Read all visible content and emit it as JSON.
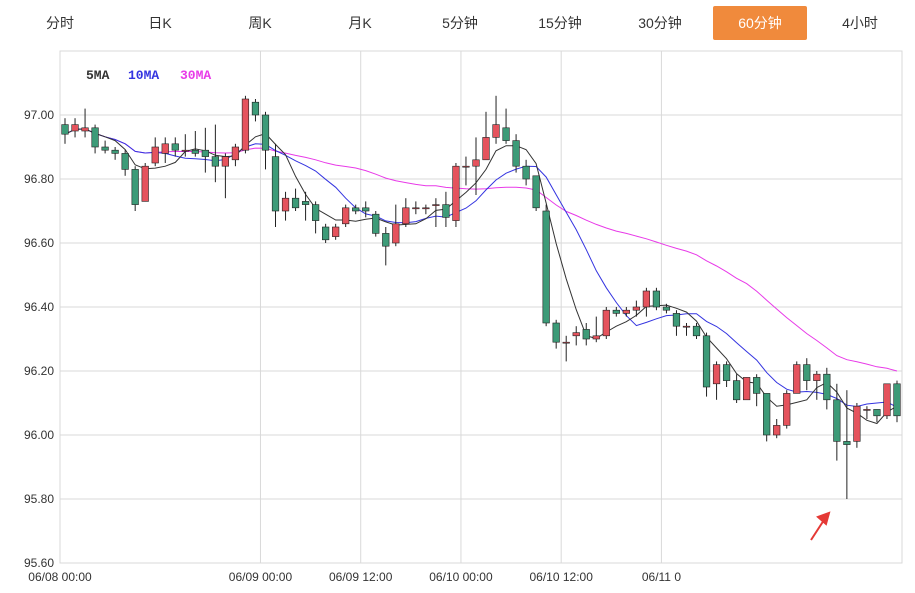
{
  "tabs": [
    {
      "label": "分时",
      "active": false
    },
    {
      "label": "日K",
      "active": false
    },
    {
      "label": "周K",
      "active": false
    },
    {
      "label": "月K",
      "active": false
    },
    {
      "label": "5分钟",
      "active": false
    },
    {
      "label": "15分钟",
      "active": false
    },
    {
      "label": "30分钟",
      "active": false
    },
    {
      "label": "60分钟",
      "active": true
    },
    {
      "label": "4小时",
      "active": false
    }
  ],
  "colors": {
    "up": "#e5535d",
    "down": "#3d9b78",
    "ma5": "#333333",
    "ma10": "#3434e0",
    "ma30": "#e83ae8",
    "active_tab": "#f08a3c",
    "grid": "#d9d9d9"
  },
  "legend": {
    "ma5": "5MA",
    "ma10": "10MA",
    "ma30": "30MA"
  },
  "chart_data": {
    "type": "candlestick",
    "interval": "60分钟",
    "ylim": [
      95.6,
      97.2
    ],
    "y_ticks": [
      "95.60",
      "95.80",
      "96.00",
      "96.20",
      "96.40",
      "96.60",
      "96.80",
      "97.00"
    ],
    "x_ticks": [
      "06/08 00:00",
      "06/09 00:00",
      "06/09 12:00",
      "06/10 00:00",
      "06/10 12:00",
      "06/11 0"
    ],
    "x_tick_index": [
      0,
      20,
      30,
      40,
      50,
      60
    ],
    "grid": true,
    "legend_position": "top-left",
    "candles": [
      [
        96.97,
        96.94,
        96.99,
        96.91
      ],
      [
        96.95,
        96.97,
        96.99,
        96.93
      ],
      [
        96.95,
        96.96,
        97.02,
        96.93
      ],
      [
        96.96,
        96.9,
        96.97,
        96.88
      ],
      [
        96.9,
        96.89,
        96.92,
        96.88
      ],
      [
        96.89,
        96.88,
        96.9,
        96.86
      ],
      [
        96.88,
        96.83,
        96.89,
        96.81
      ],
      [
        96.83,
        96.72,
        96.84,
        96.7
      ],
      [
        96.73,
        96.84,
        96.85,
        96.73
      ],
      [
        96.85,
        96.9,
        96.93,
        96.84
      ],
      [
        96.88,
        96.91,
        96.93,
        96.85
      ],
      [
        96.91,
        96.89,
        96.93,
        96.87
      ],
      [
        96.89,
        96.89,
        96.94,
        96.87
      ],
      [
        96.89,
        96.88,
        96.95,
        96.87
      ],
      [
        96.89,
        96.87,
        96.96,
        96.82
      ],
      [
        96.87,
        96.84,
        96.97,
        96.79
      ],
      [
        96.84,
        96.87,
        96.88,
        96.74
      ],
      [
        96.86,
        96.9,
        96.91,
        96.84
      ],
      [
        96.89,
        97.05,
        97.06,
        96.88
      ],
      [
        97.04,
        97.0,
        97.05,
        96.98
      ],
      [
        97.0,
        96.89,
        97.01,
        96.83
      ],
      [
        96.87,
        96.7,
        96.91,
        96.65
      ],
      [
        96.7,
        96.74,
        96.76,
        96.67
      ],
      [
        96.74,
        96.71,
        96.77,
        96.7
      ],
      [
        96.73,
        96.72,
        96.76,
        96.67
      ],
      [
        96.72,
        96.67,
        96.73,
        96.63
      ],
      [
        96.65,
        96.61,
        96.66,
        96.6
      ],
      [
        96.62,
        96.65,
        96.66,
        96.61
      ],
      [
        96.66,
        96.71,
        96.72,
        96.65
      ],
      [
        96.71,
        96.7,
        96.72,
        96.69
      ],
      [
        96.71,
        96.7,
        96.73,
        96.68
      ],
      [
        96.69,
        96.63,
        96.7,
        96.62
      ],
      [
        96.63,
        96.59,
        96.65,
        96.53
      ],
      [
        96.6,
        96.66,
        96.72,
        96.59
      ],
      [
        96.66,
        96.71,
        96.74,
        96.65
      ],
      [
        96.71,
        96.71,
        96.73,
        96.69
      ],
      [
        96.71,
        96.71,
        96.72,
        96.69
      ],
      [
        96.72,
        96.72,
        96.74,
        96.65
      ],
      [
        96.72,
        96.68,
        96.76,
        96.65
      ],
      [
        96.67,
        96.84,
        96.85,
        96.65
      ],
      [
        96.84,
        96.84,
        96.87,
        96.78
      ],
      [
        96.84,
        96.86,
        96.93,
        96.75
      ],
      [
        96.86,
        96.93,
        97.01,
        96.91
      ],
      [
        96.93,
        96.97,
        97.06,
        96.91
      ],
      [
        96.96,
        96.92,
        97.02,
        96.91
      ],
      [
        96.92,
        96.84,
        96.94,
        96.82
      ],
      [
        96.84,
        96.8,
        96.86,
        96.78
      ],
      [
        96.81,
        96.71,
        96.81,
        96.7
      ],
      [
        96.7,
        96.35,
        96.72,
        96.34
      ],
      [
        96.35,
        96.29,
        96.36,
        96.27
      ],
      [
        96.29,
        96.29,
        96.31,
        96.23
      ],
      [
        96.31,
        96.32,
        96.34,
        96.28
      ],
      [
        96.33,
        96.3,
        96.35,
        96.28
      ],
      [
        96.3,
        96.31,
        96.37,
        96.29
      ],
      [
        96.31,
        96.39,
        96.4,
        96.3
      ],
      [
        96.39,
        96.38,
        96.4,
        96.37
      ],
      [
        96.38,
        96.39,
        96.4,
        96.37
      ],
      [
        96.39,
        96.4,
        96.42,
        96.37
      ],
      [
        96.4,
        96.45,
        96.46,
        96.37
      ],
      [
        96.45,
        96.4,
        96.46,
        96.39
      ],
      [
        96.4,
        96.39,
        96.41,
        96.38
      ],
      [
        96.38,
        96.34,
        96.39,
        96.31
      ],
      [
        96.34,
        96.34,
        96.35,
        96.31
      ],
      [
        96.34,
        96.31,
        96.35,
        96.3
      ],
      [
        96.31,
        96.15,
        96.32,
        96.12
      ],
      [
        96.16,
        96.22,
        96.23,
        96.11
      ],
      [
        96.22,
        96.17,
        96.23,
        96.15
      ],
      [
        96.17,
        96.11,
        96.19,
        96.1
      ],
      [
        96.11,
        96.18,
        96.18,
        96.11
      ],
      [
        96.18,
        96.13,
        96.19,
        96.09
      ],
      [
        96.13,
        96.0,
        96.13,
        95.98
      ],
      [
        96.0,
        96.03,
        96.05,
        95.99
      ],
      [
        96.03,
        96.13,
        96.14,
        96.02
      ],
      [
        96.13,
        96.22,
        96.23,
        96.13
      ],
      [
        96.22,
        96.17,
        96.24,
        96.14
      ],
      [
        96.17,
        96.19,
        96.2,
        96.11
      ],
      [
        96.19,
        96.11,
        96.21,
        96.08
      ],
      [
        96.11,
        95.98,
        96.16,
        95.92
      ],
      [
        95.98,
        95.97,
        96.14,
        95.8
      ],
      [
        95.98,
        96.09,
        96.1,
        95.96
      ],
      [
        96.08,
        96.08,
        96.09,
        96.05
      ],
      [
        96.08,
        96.06,
        96.08,
        96.04
      ],
      [
        96.06,
        96.16,
        96.16,
        96.05
      ],
      [
        96.16,
        96.06,
        96.17,
        96.04
      ]
    ]
  }
}
